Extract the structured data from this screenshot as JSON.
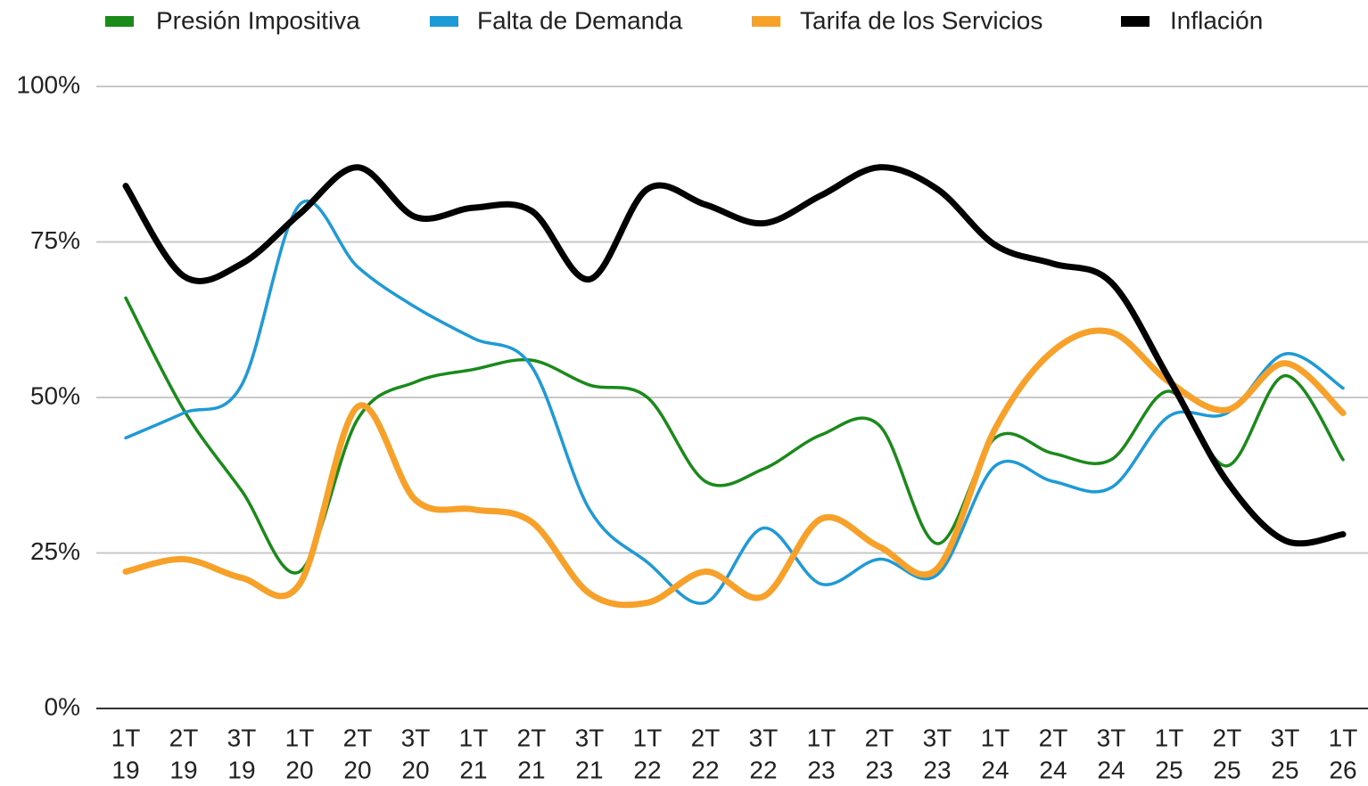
{
  "chart_data": {
    "type": "line",
    "categories": [
      [
        "1T",
        "19"
      ],
      [
        "2T",
        "19"
      ],
      [
        "3T",
        "19"
      ],
      [
        "1T",
        "20"
      ],
      [
        "2T",
        "20"
      ],
      [
        "3T",
        "20"
      ],
      [
        "1T",
        "21"
      ],
      [
        "2T",
        "21"
      ],
      [
        "3T",
        "21"
      ],
      [
        "1T",
        "22"
      ],
      [
        "2T",
        "22"
      ],
      [
        "3T",
        "22"
      ],
      [
        "1T",
        "23"
      ],
      [
        "2T",
        "23"
      ],
      [
        "3T",
        "23"
      ],
      [
        "1T",
        "24"
      ],
      [
        "2T",
        "24"
      ],
      [
        "3T",
        "24"
      ],
      [
        "1T",
        "25"
      ],
      [
        "2T",
        "25"
      ],
      [
        "3T",
        "25"
      ],
      [
        "1T",
        "26"
      ]
    ],
    "series": [
      {
        "name": "Presión Impositiva",
        "color": "#1a8a1a",
        "values": [
          66,
          48,
          35,
          22,
          46.5,
          52.5,
          54.5,
          56,
          52,
          50,
          36.5,
          38.5,
          44,
          45.5,
          26.5,
          43.5,
          41,
          40,
          51,
          39,
          53.5,
          40
        ]
      },
      {
        "name": "Falta de Demanda",
        "color": "#1e9ad6",
        "values": [
          43.5,
          47.5,
          52,
          81,
          71,
          64.5,
          59.5,
          55,
          32,
          23.5,
          17,
          29,
          20,
          24,
          21.5,
          39,
          36.5,
          35.5,
          47,
          47.5,
          57,
          51.5
        ]
      },
      {
        "name": "Tarifa de los Servicios",
        "color": "#f7a12b",
        "values": [
          22,
          24,
          21,
          20,
          48.5,
          33.5,
          32,
          30,
          18.5,
          17,
          22,
          18,
          30.5,
          26,
          22.5,
          45,
          57.5,
          60.5,
          52.5,
          48,
          55.5,
          47.5
        ]
      },
      {
        "name": "Inflación",
        "color": "#000000",
        "values": [
          84,
          69.5,
          71.5,
          79.5,
          87,
          79,
          80.5,
          80,
          69,
          83.5,
          81,
          78,
          82.5,
          87,
          83.5,
          74.5,
          71.5,
          68.5,
          53,
          36.5,
          27,
          28
        ]
      }
    ],
    "ylim": [
      0,
      100
    ],
    "yticks": [
      {
        "value": 0,
        "label": "0%"
      },
      {
        "value": 25,
        "label": "25%"
      },
      {
        "value": 50,
        "label": "50%"
      },
      {
        "value": 75,
        "label": "75%"
      },
      {
        "value": 100,
        "label": "100%"
      }
    ],
    "grid": true,
    "legend": "top"
  }
}
